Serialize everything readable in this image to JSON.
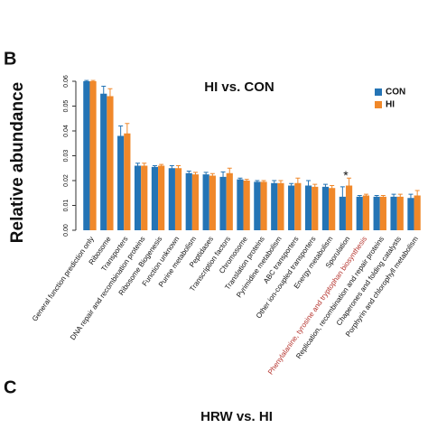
{
  "panel_label": "B",
  "chart_data": {
    "type": "bar",
    "title": "HI vs. CON",
    "y_label": "Relative abundance",
    "categories": [
      "General function prediction only",
      "Ribosome",
      "Transporters",
      "DNA repair and recombination proteins",
      "Ribosome Biogenesis",
      "Function unknown",
      "Purine metabolism",
      "Peptidases",
      "Transcription factors",
      "Chromosome",
      "Translation proteins",
      "Pyrimidine metabolism",
      "ABC transporters",
      "Other ion-coupled transporters",
      "Energy metabolism",
      "Sporulation",
      "Phenylalanine, tyrosine and tryptophan biosynthesis",
      "Replication, recombination and repair proteins",
      "Chaperones and folding catalysts",
      "Porphyrin and chlorophyll metabolism"
    ],
    "series": [
      {
        "name": "CON",
        "color": "#2474b5",
        "values": [
          0.06,
          0.055,
          0.038,
          0.026,
          0.0255,
          0.025,
          0.023,
          0.0225,
          0.0215,
          0.0205,
          0.0195,
          0.019,
          0.018,
          0.018,
          0.0175,
          0.0135,
          0.0135,
          0.0135,
          0.0135,
          0.013
        ],
        "errors": [
          0.0003,
          0.003,
          0.004,
          0.001,
          0.0005,
          0.001,
          0.0008,
          0.0008,
          0.002,
          0.0005,
          0.0005,
          0.001,
          0.0008,
          0.002,
          0.001,
          0.004,
          0.0005,
          0.0005,
          0.001,
          0.0015
        ]
      },
      {
        "name": "HI",
        "color": "#f0882a",
        "values": [
          0.06,
          0.054,
          0.039,
          0.026,
          0.026,
          0.025,
          0.0225,
          0.022,
          0.023,
          0.02,
          0.0195,
          0.019,
          0.019,
          0.0175,
          0.017,
          0.018,
          0.014,
          0.0135,
          0.0135,
          0.014
        ],
        "errors": [
          0.0003,
          0.003,
          0.004,
          0.001,
          0.0005,
          0.001,
          0.0008,
          0.0008,
          0.002,
          0.0005,
          0.0005,
          0.001,
          0.002,
          0.001,
          0.001,
          0.003,
          0.0005,
          0.0005,
          0.001,
          0.002
        ]
      }
    ],
    "ylim": [
      0,
      0.06
    ],
    "yticks": [
      {
        "value": 0,
        "label": "0.00"
      },
      {
        "value": 0.01,
        "label": "0.01"
      },
      {
        "value": 0.02,
        "label": "0.02"
      },
      {
        "value": 0.03,
        "label": "0.03"
      },
      {
        "value": 0.04,
        "label": "0.04"
      },
      {
        "value": 0.05,
        "label": "0.05"
      },
      {
        "value": 0.06,
        "label": "0.06"
      }
    ],
    "legend": "upper right",
    "highlight_category": "Phenylalanine, tyrosine and tryptophan biosynthesis",
    "highlight_color": "#b5332d",
    "annotations": [
      {
        "text": "*",
        "category": "Sporulation"
      }
    ]
  },
  "next_panel": {
    "label": "C",
    "title": "HRW vs. HI"
  }
}
